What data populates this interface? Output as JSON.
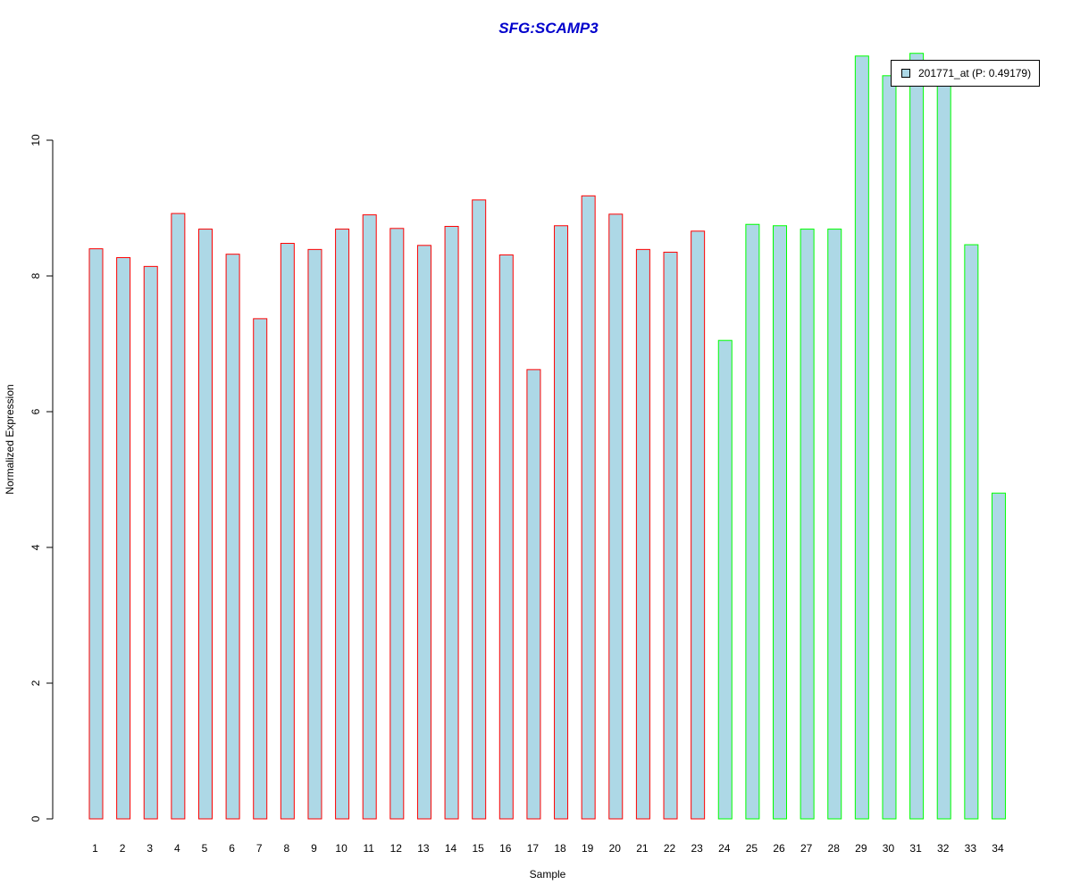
{
  "chart_data": {
    "type": "bar",
    "title": "SFG:SCAMP3",
    "xlabel": "Sample",
    "ylabel": "Normalized Expression",
    "ylim": [
      0,
      11.3
    ],
    "yticks": [
      "0",
      "2",
      "4",
      "6",
      "8",
      "10"
    ],
    "categories": [
      "1",
      "2",
      "3",
      "4",
      "5",
      "6",
      "7",
      "8",
      "9",
      "10",
      "11",
      "12",
      "13",
      "14",
      "15",
      "16",
      "17",
      "18",
      "19",
      "20",
      "21",
      "22",
      "23",
      "24",
      "25",
      "26",
      "27",
      "28",
      "29",
      "30",
      "31",
      "32",
      "33",
      "34"
    ],
    "series": [
      {
        "name": "201771_at (P: 0.49179)",
        "values": [
          8.4,
          8.27,
          8.14,
          8.92,
          8.69,
          8.32,
          7.37,
          8.48,
          8.39,
          8.69,
          8.9,
          8.7,
          8.45,
          8.73,
          9.12,
          8.31,
          6.62,
          8.74,
          9.18,
          8.91,
          8.39,
          8.35,
          8.66,
          7.05,
          8.76,
          8.74,
          8.69,
          8.69,
          11.24,
          10.95,
          11.28,
          10.85,
          8.46,
          4.8
        ]
      }
    ],
    "group_border_colors": [
      "#ff0000",
      "#ff0000",
      "#ff0000",
      "#ff0000",
      "#ff0000",
      "#ff0000",
      "#ff0000",
      "#ff0000",
      "#ff0000",
      "#ff0000",
      "#ff0000",
      "#ff0000",
      "#ff0000",
      "#ff0000",
      "#ff0000",
      "#ff0000",
      "#ff0000",
      "#ff0000",
      "#ff0000",
      "#ff0000",
      "#ff0000",
      "#ff0000",
      "#ff0000",
      "#00ff00",
      "#00ff00",
      "#00ff00",
      "#00ff00",
      "#00ff00",
      "#00ff00",
      "#00ff00",
      "#00ff00",
      "#00ff00",
      "#00ff00",
      "#00ff00"
    ],
    "bar_fill": "#add8e6",
    "title_color": "#0000cc",
    "legend_position": "top-right",
    "grid": false
  }
}
